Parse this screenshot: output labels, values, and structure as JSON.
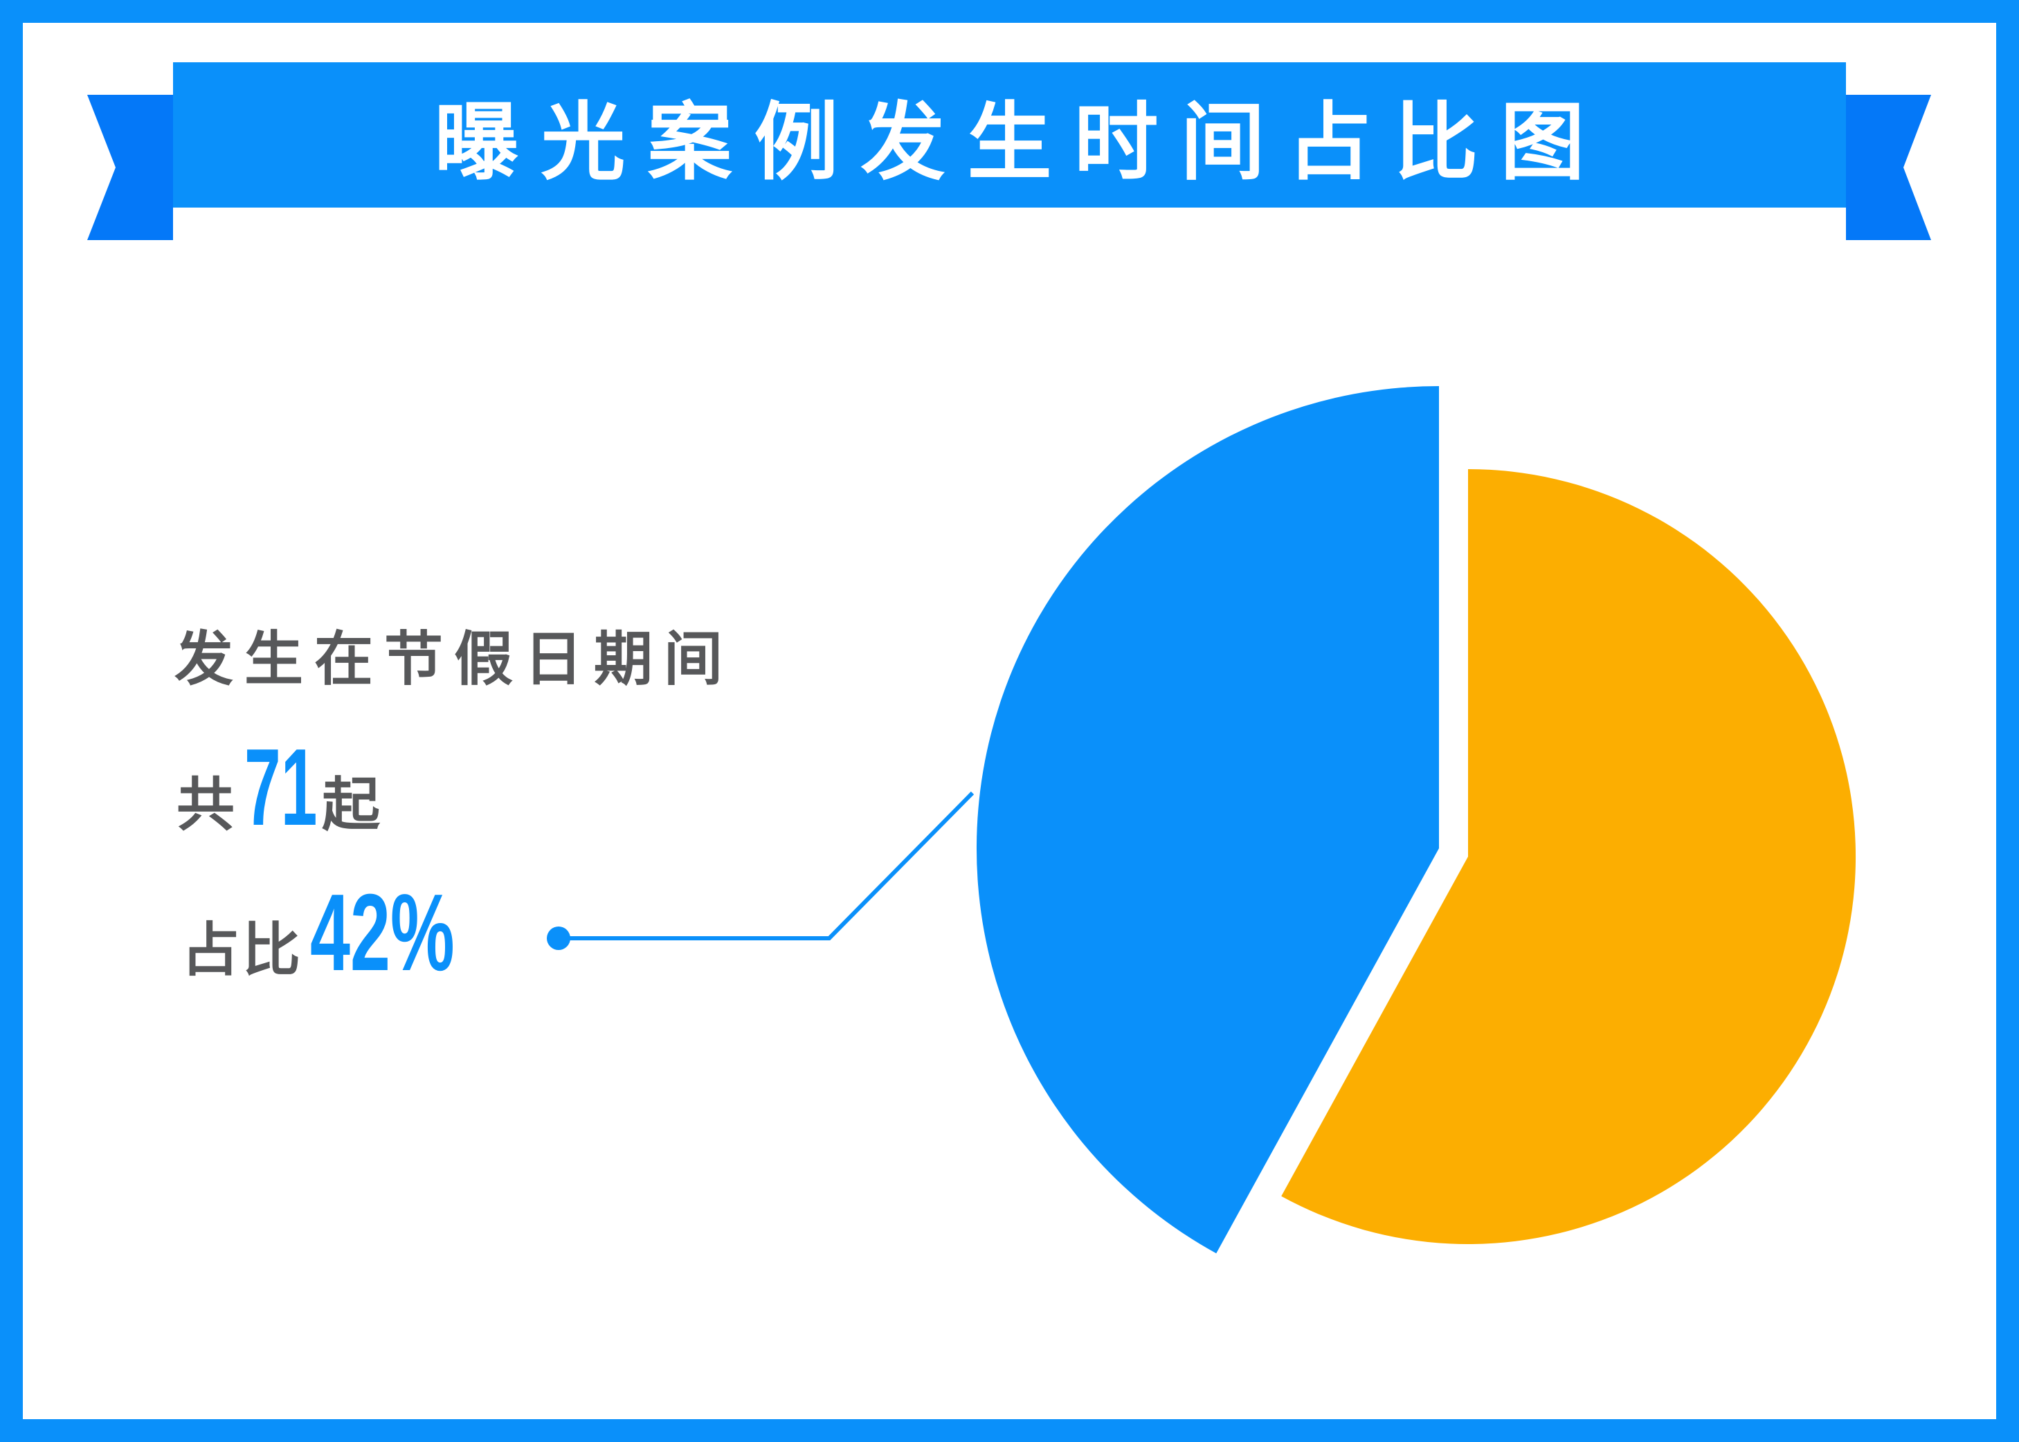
{
  "page": {
    "background": "#ffffff"
  },
  "colors": {
    "primary_blue": "#0a90fa",
    "ribbon_dark_blue": "#0478f8",
    "accent_orange": "#fcae01",
    "text_gray": "#57585a",
    "white": "#ffffff"
  },
  "banner": {
    "title": "曝光案例发生时间占比图"
  },
  "annotation": {
    "line1": "发生在节假日期间",
    "count_prefix": "共",
    "count_value": "71",
    "count_suffix": "起",
    "percent_prefix": "占比",
    "percent_value": "42%"
  },
  "chart_data": {
    "type": "pie",
    "title": "曝光案例发生时间占比图",
    "start_angle": "12-o-clock",
    "legend": "none",
    "slices": [
      {
        "label": "发生在节假日期间",
        "count": 71,
        "percent": 42,
        "color": "#0a90fa",
        "direction": "ccw",
        "exploded": true,
        "emphasized_radius": true
      },
      {
        "label": "",
        "percent": 58,
        "color": "#fcae01",
        "direction": "cw",
        "exploded": true
      }
    ]
  }
}
